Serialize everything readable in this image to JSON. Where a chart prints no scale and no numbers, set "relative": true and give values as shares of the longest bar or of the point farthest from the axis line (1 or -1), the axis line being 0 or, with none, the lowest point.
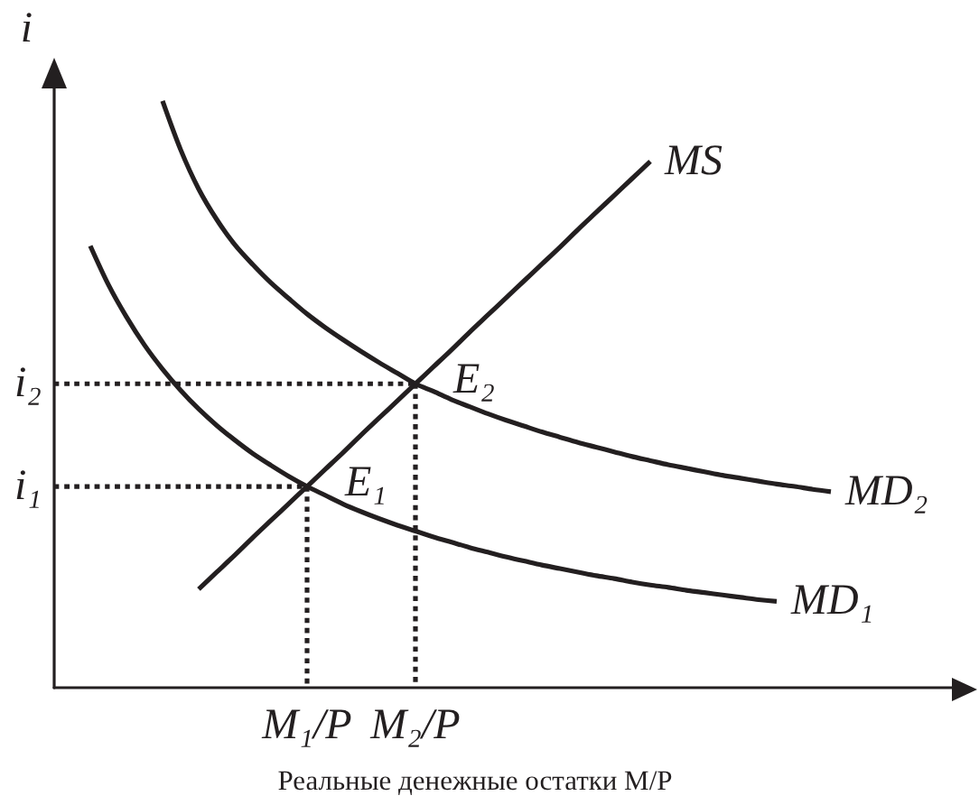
{
  "chart_data": {
    "type": "line",
    "relative": true,
    "xlabel": "Реальные денежные остатки M/P",
    "ylabel": "i",
    "marker": "none",
    "tick_labels": "x",
    "categories": [
      null,
      null,
      null,
      null,
      null,
      null,
      null,
      null,
      null,
      null,
      null,
      null,
      null,
      null,
      "M₁/P",
      null,
      null,
      null,
      null,
      null,
      "M₂/P",
      null,
      null,
      null,
      null,
      null,
      null,
      null,
      null,
      null,
      null,
      null,
      null,
      null,
      null,
      null,
      null,
      null,
      null,
      null,
      null,
      null,
      null,
      null,
      null,
      null,
      null,
      null,
      null,
      null,
      null
    ],
    "series": [
      {
        "name": "MS",
        "color": "#231f20",
        "values": [
          null,
          null,
          null,
          null,
          null,
          null,
          null,
          null,
          0.168,
          0.197,
          0.226,
          0.256,
          0.285,
          0.314,
          0.343,
          0.372,
          0.401,
          0.431,
          0.46,
          0.489,
          0.518,
          0.547,
          0.576,
          0.606,
          0.635,
          0.664,
          0.693,
          0.722,
          0.751,
          0.781,
          0.81,
          0.839,
          0.868,
          0.897,
          null,
          null,
          null,
          null,
          null,
          null,
          null,
          null,
          null,
          null,
          null,
          null,
          null,
          null,
          null,
          null,
          null
        ]
      },
      {
        "name": "MD₁",
        "color": "#231f20",
        "values": [
          null,
          null,
          0.753,
          0.687,
          0.632,
          0.584,
          0.543,
          0.507,
          0.475,
          0.447,
          0.422,
          0.399,
          0.379,
          0.36,
          0.343,
          0.328,
          0.313,
          0.3,
          0.288,
          0.277,
          0.267,
          0.257,
          0.248,
          0.239,
          0.231,
          0.223,
          0.216,
          0.209,
          0.203,
          0.197,
          0.191,
          0.186,
          0.18,
          0.175,
          0.171,
          0.166,
          0.162,
          0.158,
          0.154,
          0.15,
          0.147,
          null,
          null,
          null,
          null,
          null,
          null,
          null,
          null,
          null,
          null
        ]
      },
      {
        "name": "MD₂",
        "color": "#231f20",
        "values": [
          null,
          null,
          null,
          null,
          null,
          null,
          1,
          0.917,
          0.85,
          0.798,
          0.755,
          0.721,
          0.69,
          0.663,
          0.637,
          0.614,
          0.593,
          0.573,
          0.554,
          0.536,
          0.518,
          0.505,
          0.491,
          0.479,
          0.467,
          0.456,
          0.446,
          0.436,
          0.427,
          0.418,
          0.41,
          0.402,
          0.394,
          0.387,
          0.38,
          0.374,
          0.368,
          0.362,
          0.357,
          0.352,
          0.347,
          0.343,
          0.338,
          0.334,
          null,
          null,
          null,
          null,
          null,
          null,
          null
        ]
      },
      {
        "name": "i₁",
        "color": "#231f20",
        "line_style": "dotted",
        "values": [
          0.343,
          0.343,
          0.343,
          0.343,
          0.343,
          0.343,
          0.343,
          0.343,
          0.343,
          0.343,
          0.343,
          0.343,
          0.343,
          0.343,
          0.343,
          null,
          null,
          null,
          null,
          null,
          null,
          null,
          null,
          null,
          null,
          null,
          null,
          null,
          null,
          null,
          null,
          null,
          null,
          null,
          null,
          null,
          null,
          null,
          null,
          null,
          null,
          null,
          null,
          null,
          null,
          null,
          null,
          null,
          null,
          null,
          null
        ]
      },
      {
        "name": "i₂",
        "color": "#231f20",
        "line_style": "dotted",
        "values": [
          0.518,
          0.518,
          0.518,
          0.518,
          0.518,
          0.518,
          0.518,
          0.518,
          0.518,
          0.518,
          0.518,
          0.518,
          0.518,
          0.518,
          0.518,
          0.518,
          0.518,
          0.518,
          0.518,
          0.518,
          0.518,
          null,
          null,
          null,
          null,
          null,
          null,
          null,
          null,
          null,
          null,
          null,
          null,
          null,
          null,
          null,
          null,
          null,
          null,
          null,
          null,
          null,
          null,
          null,
          null,
          null,
          null,
          null,
          null,
          null,
          null
        ]
      },
      {
        "color": "#231f20",
        "line_style": "dotted",
        "x": [
          "M₁/P",
          "M₁/P"
        ],
        "values": [
          0.343,
          0
        ]
      },
      {
        "color": "#231f20",
        "line_style": "dotted",
        "x": [
          "M₂/P",
          "M₂/P"
        ],
        "values": [
          0.518,
          0
        ]
      }
    ],
    "annotations": [
      {
        "text": "E₁",
        "x": "M₁/P",
        "y": 0.343
      },
      {
        "text": "E₂",
        "x": "M₂/P",
        "y": 0.518
      }
    ]
  }
}
